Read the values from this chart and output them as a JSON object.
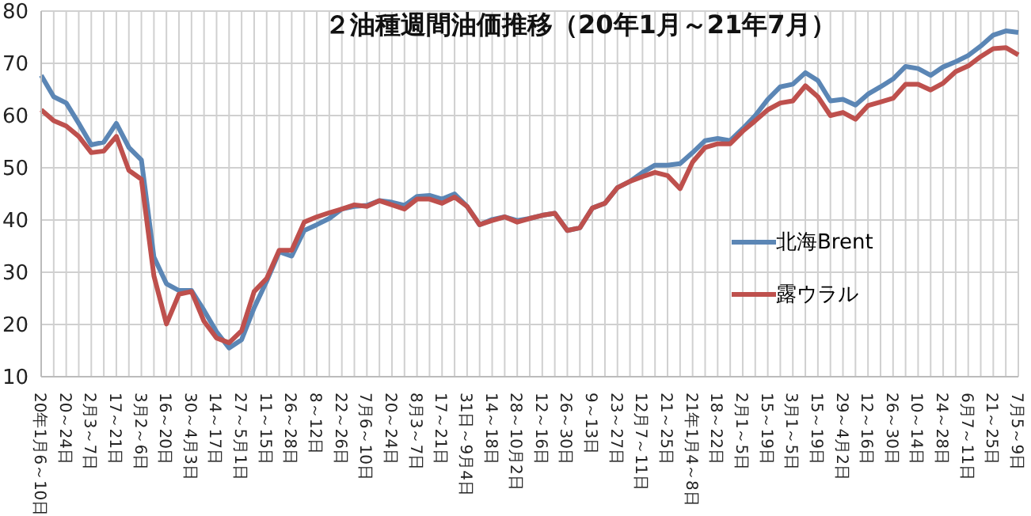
{
  "chart_data": {
    "type": "line",
    "title": "２油種週間油価推移（20年1月～21年7月）",
    "categories": [
      "20年1月6～10日",
      null,
      "20～24日",
      null,
      "2月3～7日",
      null,
      "17～21日",
      null,
      "3月2～6日",
      null,
      "16～20日",
      null,
      "30～4月3日",
      null,
      "14～17日",
      null,
      "27～5月1日",
      null,
      "11～15日",
      null,
      "26～28日",
      null,
      "8～12日",
      null,
      "22～26日",
      null,
      "7月6～10日",
      null,
      "20～24日",
      null,
      "8月3～7日",
      null,
      "17～21日",
      null,
      "31日～9月4日",
      null,
      "14～18日",
      null,
      "28～10月2日",
      null,
      "12～16日",
      null,
      "26～30日",
      null,
      "9～13日",
      null,
      "23～27日",
      null,
      "12月7～11日",
      null,
      "21～25日",
      null,
      "21年1月4～8日",
      null,
      "18～22日",
      null,
      "2月1～5日",
      null,
      "15～19日",
      null,
      "3月1～5日",
      null,
      "15～19日",
      null,
      "29～4月2日",
      null,
      "12～16日",
      null,
      "26～30日",
      null,
      "10～14日",
      null,
      "24～28日",
      null,
      "6月7～11日",
      null,
      "21～25日",
      null,
      "7月5～9日"
    ],
    "series": [
      {
        "name": "北海Brent",
        "color": "#5b86b5",
        "values": [
          67.7,
          63.6,
          62.4,
          58.5,
          54.4,
          54.9,
          58.5,
          53.9,
          51.5,
          32.9,
          27.8,
          26.5,
          26.5,
          22.7,
          18.6,
          15.5,
          17.1,
          23.2,
          28.3,
          33.9,
          33.1,
          38.0,
          39.1,
          40.3,
          42.1,
          42.6,
          42.8,
          43.7,
          43.4,
          42.8,
          44.5,
          44.7,
          44.0,
          45.0,
          42.6,
          39.1,
          40.1,
          40.6,
          39.9,
          40.3,
          40.9,
          41.3,
          38.0,
          38.5,
          42.3,
          43.2,
          46.2,
          47.4,
          49.1,
          50.5,
          50.5,
          50.8,
          52.9,
          55.2,
          55.6,
          55.2,
          57.5,
          60.0,
          63.1,
          65.5,
          66.0,
          68.2,
          66.7,
          62.8,
          63.1,
          62.0,
          64.1,
          65.5,
          67.0,
          69.4,
          69.0,
          67.7,
          69.3,
          70.3,
          71.5,
          73.3,
          75.4,
          76.2,
          75.9
        ]
      },
      {
        "name": "露ウラル",
        "color": "#be504d",
        "values": [
          61.1,
          59.0,
          58.0,
          56.0,
          52.9,
          53.2,
          56.0,
          49.5,
          47.8,
          29.3,
          20.1,
          25.8,
          26.3,
          20.6,
          17.4,
          16.5,
          18.8,
          26.3,
          28.8,
          34.2,
          34.2,
          39.6,
          40.6,
          41.4,
          42.1,
          42.9,
          42.6,
          43.7,
          42.9,
          42.1,
          44.0,
          44.0,
          43.2,
          44.4,
          42.6,
          39.1,
          39.9,
          40.6,
          39.6,
          40.3,
          40.9,
          41.3,
          38.0,
          38.5,
          42.3,
          43.2,
          46.2,
          47.4,
          48.3,
          49.1,
          48.5,
          46.0,
          51.1,
          53.9,
          54.6,
          54.6,
          57.0,
          59.0,
          61.1,
          62.4,
          62.8,
          65.7,
          63.6,
          60.0,
          60.6,
          59.3,
          61.9,
          62.6,
          63.3,
          66.0,
          66.0,
          64.9,
          66.2,
          68.4,
          69.5,
          71.3,
          72.8,
          73.0,
          71.6
        ]
      }
    ],
    "ylim": [
      10,
      80
    ],
    "yticks": [
      10,
      20,
      30,
      40,
      50,
      60,
      70,
      80
    ],
    "grid": true,
    "legend": "right",
    "marker": "none",
    "line_style": "solid"
  }
}
